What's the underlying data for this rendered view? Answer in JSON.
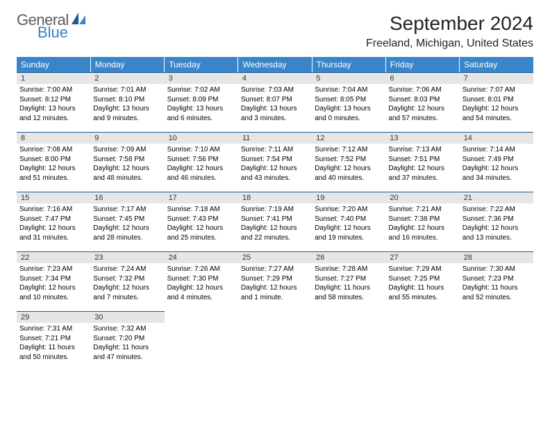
{
  "logo": {
    "text_top": "General",
    "text_bottom": "Blue",
    "top_color": "#5a5a5a",
    "bottom_color": "#3a7fc4"
  },
  "title": "September 2024",
  "location": "Freeland, Michigan, United States",
  "colors": {
    "header_bg": "#3a85c9",
    "header_fg": "#ffffff",
    "daynum_bg": "#e6e6e6",
    "cell_border": "#1b5a8f",
    "page_bg": "#ffffff"
  },
  "typography": {
    "title_fontsize": 28,
    "location_fontsize": 16,
    "dayheader_fontsize": 12,
    "daynum_fontsize": 11,
    "body_fontsize": 10
  },
  "day_headers": [
    "Sunday",
    "Monday",
    "Tuesday",
    "Wednesday",
    "Thursday",
    "Friday",
    "Saturday"
  ],
  "weeks": [
    [
      {
        "day": "1",
        "sunrise": "Sunrise: 7:00 AM",
        "sunset": "Sunset: 8:12 PM",
        "daylight": "Daylight: 13 hours and 12 minutes."
      },
      {
        "day": "2",
        "sunrise": "Sunrise: 7:01 AM",
        "sunset": "Sunset: 8:10 PM",
        "daylight": "Daylight: 13 hours and 9 minutes."
      },
      {
        "day": "3",
        "sunrise": "Sunrise: 7:02 AM",
        "sunset": "Sunset: 8:09 PM",
        "daylight": "Daylight: 13 hours and 6 minutes."
      },
      {
        "day": "4",
        "sunrise": "Sunrise: 7:03 AM",
        "sunset": "Sunset: 8:07 PM",
        "daylight": "Daylight: 13 hours and 3 minutes."
      },
      {
        "day": "5",
        "sunrise": "Sunrise: 7:04 AM",
        "sunset": "Sunset: 8:05 PM",
        "daylight": "Daylight: 13 hours and 0 minutes."
      },
      {
        "day": "6",
        "sunrise": "Sunrise: 7:06 AM",
        "sunset": "Sunset: 8:03 PM",
        "daylight": "Daylight: 12 hours and 57 minutes."
      },
      {
        "day": "7",
        "sunrise": "Sunrise: 7:07 AM",
        "sunset": "Sunset: 8:01 PM",
        "daylight": "Daylight: 12 hours and 54 minutes."
      }
    ],
    [
      {
        "day": "8",
        "sunrise": "Sunrise: 7:08 AM",
        "sunset": "Sunset: 8:00 PM",
        "daylight": "Daylight: 12 hours and 51 minutes."
      },
      {
        "day": "9",
        "sunrise": "Sunrise: 7:09 AM",
        "sunset": "Sunset: 7:58 PM",
        "daylight": "Daylight: 12 hours and 48 minutes."
      },
      {
        "day": "10",
        "sunrise": "Sunrise: 7:10 AM",
        "sunset": "Sunset: 7:56 PM",
        "daylight": "Daylight: 12 hours and 46 minutes."
      },
      {
        "day": "11",
        "sunrise": "Sunrise: 7:11 AM",
        "sunset": "Sunset: 7:54 PM",
        "daylight": "Daylight: 12 hours and 43 minutes."
      },
      {
        "day": "12",
        "sunrise": "Sunrise: 7:12 AM",
        "sunset": "Sunset: 7:52 PM",
        "daylight": "Daylight: 12 hours and 40 minutes."
      },
      {
        "day": "13",
        "sunrise": "Sunrise: 7:13 AM",
        "sunset": "Sunset: 7:51 PM",
        "daylight": "Daylight: 12 hours and 37 minutes."
      },
      {
        "day": "14",
        "sunrise": "Sunrise: 7:14 AM",
        "sunset": "Sunset: 7:49 PM",
        "daylight": "Daylight: 12 hours and 34 minutes."
      }
    ],
    [
      {
        "day": "15",
        "sunrise": "Sunrise: 7:16 AM",
        "sunset": "Sunset: 7:47 PM",
        "daylight": "Daylight: 12 hours and 31 minutes."
      },
      {
        "day": "16",
        "sunrise": "Sunrise: 7:17 AM",
        "sunset": "Sunset: 7:45 PM",
        "daylight": "Daylight: 12 hours and 28 minutes."
      },
      {
        "day": "17",
        "sunrise": "Sunrise: 7:18 AM",
        "sunset": "Sunset: 7:43 PM",
        "daylight": "Daylight: 12 hours and 25 minutes."
      },
      {
        "day": "18",
        "sunrise": "Sunrise: 7:19 AM",
        "sunset": "Sunset: 7:41 PM",
        "daylight": "Daylight: 12 hours and 22 minutes."
      },
      {
        "day": "19",
        "sunrise": "Sunrise: 7:20 AM",
        "sunset": "Sunset: 7:40 PM",
        "daylight": "Daylight: 12 hours and 19 minutes."
      },
      {
        "day": "20",
        "sunrise": "Sunrise: 7:21 AM",
        "sunset": "Sunset: 7:38 PM",
        "daylight": "Daylight: 12 hours and 16 minutes."
      },
      {
        "day": "21",
        "sunrise": "Sunrise: 7:22 AM",
        "sunset": "Sunset: 7:36 PM",
        "daylight": "Daylight: 12 hours and 13 minutes."
      }
    ],
    [
      {
        "day": "22",
        "sunrise": "Sunrise: 7:23 AM",
        "sunset": "Sunset: 7:34 PM",
        "daylight": "Daylight: 12 hours and 10 minutes."
      },
      {
        "day": "23",
        "sunrise": "Sunrise: 7:24 AM",
        "sunset": "Sunset: 7:32 PM",
        "daylight": "Daylight: 12 hours and 7 minutes."
      },
      {
        "day": "24",
        "sunrise": "Sunrise: 7:26 AM",
        "sunset": "Sunset: 7:30 PM",
        "daylight": "Daylight: 12 hours and 4 minutes."
      },
      {
        "day": "25",
        "sunrise": "Sunrise: 7:27 AM",
        "sunset": "Sunset: 7:29 PM",
        "daylight": "Daylight: 12 hours and 1 minute."
      },
      {
        "day": "26",
        "sunrise": "Sunrise: 7:28 AM",
        "sunset": "Sunset: 7:27 PM",
        "daylight": "Daylight: 11 hours and 58 minutes."
      },
      {
        "day": "27",
        "sunrise": "Sunrise: 7:29 AM",
        "sunset": "Sunset: 7:25 PM",
        "daylight": "Daylight: 11 hours and 55 minutes."
      },
      {
        "day": "28",
        "sunrise": "Sunrise: 7:30 AM",
        "sunset": "Sunset: 7:23 PM",
        "daylight": "Daylight: 11 hours and 52 minutes."
      }
    ],
    [
      {
        "day": "29",
        "sunrise": "Sunrise: 7:31 AM",
        "sunset": "Sunset: 7:21 PM",
        "daylight": "Daylight: 11 hours and 50 minutes."
      },
      {
        "day": "30",
        "sunrise": "Sunrise: 7:32 AM",
        "sunset": "Sunset: 7:20 PM",
        "daylight": "Daylight: 11 hours and 47 minutes."
      },
      null,
      null,
      null,
      null,
      null
    ]
  ]
}
